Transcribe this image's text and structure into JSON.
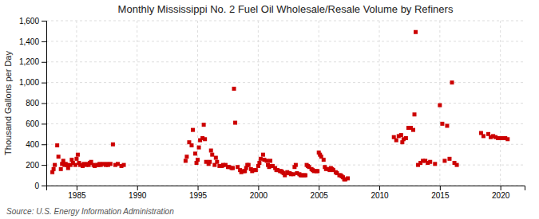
{
  "chart_data": {
    "type": "scatter",
    "title": "Monthly Mississippi No. 2 Fuel Oil Wholesale/Resale Volume by Refiners",
    "ylabel": "Thousand Gallons per Day",
    "annotations": [
      "Source: U.S. Energy Information Administration"
    ],
    "color": "#CC0000",
    "marker": "square",
    "grid": true,
    "xlim": [
      1982.5,
      2022
    ],
    "xticks": [
      1985,
      1990,
      1995,
      2000,
      2005,
      2010,
      2015,
      2020
    ],
    "ylim": [
      0,
      1600
    ],
    "yticks": [
      0,
      200,
      400,
      600,
      800,
      {
        "value": 1000,
        "label": "1,000"
      },
      {
        "value": 1200,
        "label": "1,200"
      },
      {
        "value": 1400,
        "label": "1,400"
      },
      {
        "value": 1600,
        "label": "1,600"
      }
    ],
    "x": [
      1983.0,
      1983.1,
      1983.2,
      1983.4,
      1983.5,
      1983.7,
      1983.8,
      1983.9,
      1984.0,
      1984.1,
      1984.2,
      1984.3,
      1984.5,
      1984.6,
      1984.7,
      1984.9,
      1985.0,
      1985.1,
      1985.2,
      1985.3,
      1985.5,
      1985.6,
      1985.8,
      1985.9,
      1986.0,
      1986.1,
      1986.2,
      1986.4,
      1986.5,
      1986.7,
      1986.8,
      1986.9,
      1987.0,
      1987.2,
      1987.4,
      1987.5,
      1987.6,
      1987.8,
      1988.0,
      1988.2,
      1988.4,
      1988.7,
      1988.9,
      1994.0,
      1994.1,
      1994.3,
      1994.5,
      1994.6,
      1994.8,
      1994.9,
      1995.0,
      1995.1,
      1995.2,
      1995.4,
      1995.5,
      1995.6,
      1995.7,
      1995.9,
      1996.0,
      1996.1,
      1996.2,
      1996.4,
      1996.5,
      1996.6,
      1996.8,
      1997.0,
      1997.1,
      1997.3,
      1997.5,
      1997.6,
      1997.8,
      1997.9,
      1998.0,
      1998.1,
      1998.3,
      1998.5,
      1998.6,
      1998.8,
      1998.9,
      1999.0,
      1999.1,
      1999.2,
      1999.4,
      1999.5,
      1999.7,
      1999.8,
      2000.0,
      2000.1,
      2000.2,
      2000.4,
      2000.5,
      2000.7,
      2000.8,
      2000.9,
      2001.0,
      2001.1,
      2001.2,
      2001.4,
      2001.5,
      2001.6,
      2001.8,
      2001.9,
      2002.0,
      2002.1,
      2002.2,
      2002.4,
      2002.5,
      2002.6,
      2002.7,
      2002.9,
      2003.0,
      2003.1,
      2003.2,
      2003.4,
      2003.5,
      2003.6,
      2003.8,
      2003.9,
      2004.0,
      2004.1,
      2004.2,
      2004.4,
      2004.5,
      2004.6,
      2004.8,
      2004.9,
      2005.0,
      2005.1,
      2005.2,
      2005.4,
      2005.5,
      2005.6,
      2005.8,
      2005.9,
      2006.0,
      2006.1,
      2006.2,
      2006.4,
      2006.5,
      2006.7,
      2006.8,
      2006.9,
      2007.0,
      2007.1,
      2007.2,
      2007.4,
      2011.2,
      2011.4,
      2011.6,
      2011.8,
      2011.9,
      2012.0,
      2012.2,
      2012.4,
      2012.6,
      2012.8,
      2012.9,
      2013.0,
      2013.2,
      2013.4,
      2013.6,
      2013.8,
      2014.0,
      2014.2,
      2014.6,
      2015.0,
      2015.2,
      2015.4,
      2015.6,
      2015.8,
      2016.0,
      2016.2,
      2016.4,
      2018.4,
      2018.6,
      2019.0,
      2019.2,
      2019.4,
      2019.6,
      2019.8,
      2020.0,
      2020.2,
      2020.4,
      2020.6
    ],
    "values": [
      130,
      160,
      200,
      390,
      280,
      160,
      210,
      240,
      200,
      210,
      200,
      170,
      200,
      250,
      220,
      200,
      260,
      300,
      220,
      200,
      190,
      210,
      200,
      210,
      200,
      220,
      230,
      200,
      190,
      200,
      200,
      210,
      200,
      210,
      200,
      210,
      200,
      210,
      400,
      200,
      210,
      190,
      200,
      240,
      280,
      420,
      390,
      540,
      310,
      220,
      250,
      370,
      440,
      460,
      590,
      450,
      230,
      210,
      230,
      340,
      300,
      200,
      270,
      230,
      190,
      190,
      200,
      200,
      180,
      180,
      170,
      170,
      940,
      610,
      180,
      150,
      130,
      140,
      140,
      170,
      200,
      200,
      160,
      140,
      150,
      150,
      190,
      220,
      260,
      300,
      250,
      240,
      200,
      180,
      240,
      190,
      190,
      170,
      150,
      150,
      140,
      140,
      130,
      120,
      100,
      130,
      120,
      120,
      110,
      110,
      180,
      200,
      120,
      110,
      100,
      100,
      100,
      100,
      200,
      190,
      180,
      160,
      150,
      140,
      140,
      140,
      320,
      300,
      280,
      250,
      180,
      160,
      160,
      150,
      170,
      160,
      150,
      130,
      120,
      100,
      100,
      90,
      80,
      60,
      60,
      70,
      470,
      440,
      480,
      490,
      420,
      450,
      460,
      560,
      560,
      540,
      690,
      1490,
      200,
      220,
      240,
      240,
      220,
      230,
      210,
      780,
      600,
      240,
      580,
      260,
      1000,
      220,
      200,
      510,
      480,
      500,
      470,
      480,
      470,
      460,
      460,
      460,
      460,
      450
    ]
  }
}
